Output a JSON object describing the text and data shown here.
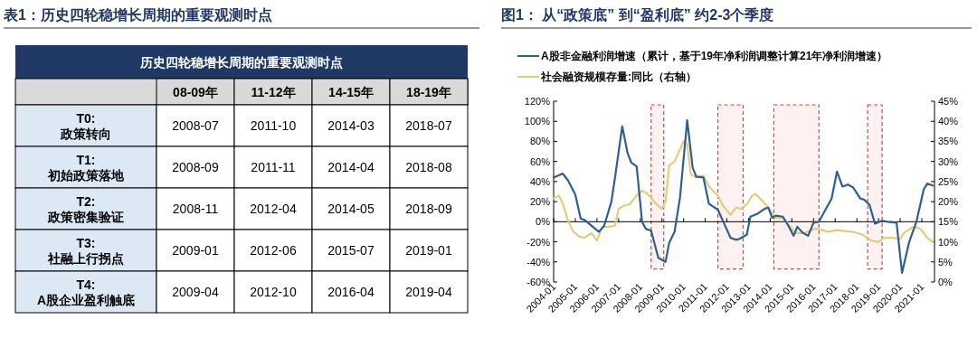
{
  "chart_data": [
    {
      "type": "other",
      "title": "表1：历史四轮稳增长周期的重要观测时点",
      "subtitle": "历史四轮稳增长周期的重要观测时点",
      "categories": [
        "08-09年",
        "11-12年",
        "14-15年",
        "18-19年"
      ],
      "y_categories": [
        "T0:\n政策转向",
        "T1:\n初始政策落地",
        "T2:\n政策密集验证",
        "T3:\n社融上行拐点",
        "T4:\nA股企业盈利触底"
      ],
      "cell_labels": [
        [
          "2008-07",
          "2011-10",
          "2014-03",
          "2018-07"
        ],
        [
          "2008-09",
          "2011-11",
          "2014-04",
          "2018-08"
        ],
        [
          "2008-11",
          "2012-04",
          "2014-05",
          "2018-09"
        ],
        [
          "2009-01",
          "2012-06",
          "2015-07",
          "2019-01"
        ],
        [
          "2009-04",
          "2012-10",
          "2016-04",
          "2019-04"
        ]
      ]
    },
    {
      "type": "line",
      "title": "图1： 从“政策底” 到“盈利底” 约2-3个季度",
      "legend": "top left",
      "xlim": [
        "2004-01",
        "2021-08"
      ],
      "xticks": [
        "2004-01",
        "2005-01",
        "2006-01",
        "2007-01",
        "2008-01",
        "2009-01",
        "2010-01",
        "2011-01",
        "2012-01",
        "2013-01",
        "2014-01",
        "2015-01",
        "2016-01",
        "2017-01",
        "2018-01",
        "2019-01",
        "2020-01",
        "2021-01"
      ],
      "ylim": [
        -60,
        120
      ],
      "yticks": [
        {
          "value": -60,
          "label": "-60%"
        },
        {
          "value": -40,
          "label": "-40%"
        },
        {
          "value": -20,
          "label": "-20%"
        },
        {
          "value": 0,
          "label": "0%"
        },
        {
          "value": 20,
          "label": "20%"
        },
        {
          "value": 40,
          "label": "40%"
        },
        {
          "value": 60,
          "label": "60%"
        },
        {
          "value": 80,
          "label": "80%"
        },
        {
          "value": 100,
          "label": "100%"
        },
        {
          "value": 120,
          "label": "120%"
        }
      ],
      "y2lim": [
        0,
        45
      ],
      "y2ticks": [
        {
          "value": 0,
          "label": "0%"
        },
        {
          "value": 5,
          "label": "5%"
        },
        {
          "value": 10,
          "label": "10%"
        },
        {
          "value": 15,
          "label": "15%"
        },
        {
          "value": 20,
          "label": "20%"
        },
        {
          "value": 25,
          "label": "25%"
        },
        {
          "value": 30,
          "label": "30%"
        },
        {
          "value": 35,
          "label": "35%"
        },
        {
          "value": 40,
          "label": "40%"
        },
        {
          "value": 45,
          "label": "45%"
        }
      ],
      "bands": [
        {
          "axis": "x",
          "from": "2008-07",
          "to": "2009-02",
          "color": "#e0403a"
        },
        {
          "axis": "x",
          "from": "2011-08",
          "to": "2012-10",
          "color": "#e0403a"
        },
        {
          "axis": "x",
          "from": "2014-03",
          "to": "2016-04",
          "color": "#e0403a"
        },
        {
          "axis": "x",
          "from": "2018-07",
          "to": "2019-03",
          "color": "#e0403a"
        }
      ],
      "series": [
        {
          "name": "A股非金融利润增速（累计，基于19年净利润调整计算21年净利润增速）",
          "color": "#2f5f8f",
          "x": [
            "2004-01",
            "2004-06",
            "2004-09",
            "2005-01",
            "2005-04",
            "2005-06",
            "2006-02",
            "2006-05",
            "2006-09",
            "2006-11",
            "2007-03",
            "2007-06",
            "2007-08",
            "2007-11",
            "2008-02",
            "2008-04",
            "2008-07",
            "2008-11",
            "2009-03",
            "2009-05",
            "2009-08",
            "2009-11",
            "2010-03",
            "2010-06",
            "2010-08",
            "2010-12",
            "2011-03",
            "2011-08",
            "2011-11",
            "2012-03",
            "2012-06",
            "2012-08",
            "2012-12",
            "2013-02",
            "2013-06",
            "2013-10",
            "2013-12",
            "2014-02",
            "2014-04",
            "2014-08",
            "2014-11",
            "2015-02",
            "2015-04",
            "2015-07",
            "2015-10",
            "2016-01",
            "2016-04",
            "2016-07",
            "2016-11",
            "2017-02",
            "2017-05",
            "2017-08",
            "2017-11",
            "2018-03",
            "2018-05",
            "2018-08",
            "2018-11",
            "2019-03",
            "2019-06",
            "2019-11",
            "2020-02",
            "2020-06",
            "2020-10",
            "2021-02",
            "2021-04",
            "2021-07"
          ],
          "values": [
            44,
            48,
            41,
            27,
            3,
            2,
            -10,
            -4,
            20,
            44,
            95,
            68,
            59,
            55,
            0,
            -7,
            -9,
            -36,
            -40,
            -21,
            -10,
            24,
            101,
            54,
            45,
            44,
            18,
            12,
            0,
            -16,
            -18,
            -17,
            -13,
            5,
            8,
            13,
            14,
            4,
            6,
            5,
            -4,
            -14,
            -5,
            -11,
            -14,
            -1,
            0,
            10,
            23,
            50,
            35,
            37,
            34,
            23,
            22,
            17,
            -2,
            1,
            0,
            -1,
            -51,
            -20,
            0,
            32,
            38,
            36
          ]
        },
        {
          "name": "社会融资规模存量:同比（右轴）",
          "color": "#e3cd7a",
          "axis": "y2",
          "x": [
            "2004-01",
            "2004-04",
            "2004-06",
            "2004-09",
            "2004-12",
            "2005-03",
            "2005-06",
            "2005-10",
            "2006-01",
            "2006-04",
            "2006-07",
            "2006-11",
            "2007-01",
            "2007-04",
            "2007-07",
            "2007-11",
            "2008-02",
            "2008-04",
            "2008-07",
            "2008-10",
            "2009-01",
            "2009-03",
            "2009-05",
            "2009-08",
            "2010-01",
            "2010-03",
            "2010-05",
            "2010-08",
            "2010-12",
            "2011-03",
            "2011-08",
            "2011-11",
            "2012-03",
            "2012-06",
            "2012-09",
            "2012-12",
            "2013-03",
            "2013-05",
            "2013-09",
            "2013-12",
            "2014-04",
            "2014-08",
            "2014-11",
            "2015-03",
            "2015-08",
            "2016-02",
            "2016-06",
            "2016-09",
            "2017-02",
            "2017-06",
            "2017-11",
            "2018-04",
            "2018-09",
            "2019-01",
            "2019-04",
            "2019-09",
            "2020-01",
            "2020-03",
            "2020-08",
            "2020-12",
            "2021-02",
            "2021-04",
            "2021-07"
          ],
          "values": [
            20.8,
            21.5,
            19.6,
            15.2,
            12.5,
            11.4,
            11,
            12.2,
            10.3,
            13.7,
            13.7,
            14,
            18.2,
            19,
            19.3,
            21.5,
            22.7,
            22.3,
            21,
            19.3,
            18.2,
            20,
            29,
            30,
            35,
            34.3,
            26.8,
            26,
            26.5,
            23.8,
            21.5,
            18.9,
            16.7,
            18.5,
            18.2,
            19.3,
            21.5,
            21.9,
            20,
            18.5,
            15.9,
            15.9,
            14.4,
            12.2,
            12.2,
            13.3,
            12.9,
            12.5,
            12.9,
            12.7,
            12.5,
            11.8,
            10.3,
            10,
            11,
            11,
            10.7,
            12.2,
            13.7,
            13.3,
            12.2,
            11,
            10
          ]
        }
      ]
    }
  ]
}
